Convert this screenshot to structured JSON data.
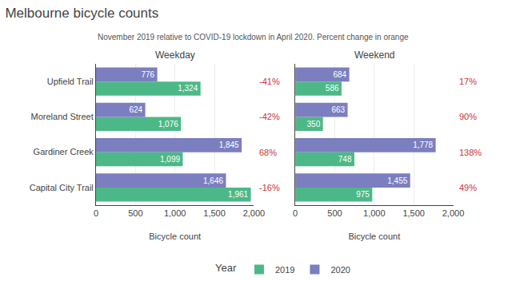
{
  "title": "Melbourne bicycle counts",
  "subtitle": "November 2019 relative to COVID-19 lockdown in April 2020. Percent change in orange",
  "legend": "bottom",
  "legend_title": "Year",
  "chart_data": [
    {
      "type": "bar",
      "title": "Weekday",
      "orientation": "horizontal",
      "categories": [
        "Capital City Trail",
        "Gardiner Creek",
        "Moreland Street",
        "Upfield Trail"
      ],
      "series": [
        {
          "name": "2019",
          "color": "#4db887",
          "values": [
            1961,
            1099,
            1076,
            1324
          ],
          "value_labels": [
            "1,961",
            "1,099",
            "1,076",
            "1,324"
          ]
        },
        {
          "name": "2020",
          "color": "#7b7fbf",
          "values": [
            1646,
            1845,
            624,
            776
          ],
          "value_labels": [
            "1,646",
            "1,845",
            "624",
            "776"
          ]
        }
      ],
      "data_labels": true,
      "annotations": [
        {
          "category": "Capital City Trail",
          "text": "-16%",
          "color": "#cc3333"
        },
        {
          "category": "Gardiner Creek",
          "text": "68%",
          "color": "#cc3333"
        },
        {
          "category": "Moreland Street",
          "text": "-42%",
          "color": "#cc3333"
        },
        {
          "category": "Upfield Trail",
          "text": "-41%",
          "color": "#cc3333"
        }
      ],
      "xlabel": "Bicycle count",
      "xlim": [
        0,
        2000
      ],
      "xticks": [
        0,
        500,
        {
          "value": 1000,
          "label": "1,000"
        },
        {
          "value": 1500,
          "label": "1,500"
        },
        {
          "value": 2000,
          "label": "2,000"
        }
      ],
      "grid": true
    },
    {
      "type": "bar",
      "title": "Weekend",
      "orientation": "horizontal",
      "categories": [
        "Capital City Trail",
        "Gardiner Creek",
        "Moreland Street",
        "Upfield Trail"
      ],
      "series": [
        {
          "name": "2019",
          "color": "#4db887",
          "values": [
            975,
            748,
            350,
            586
          ],
          "value_labels": [
            "975",
            "748",
            "350",
            "586"
          ]
        },
        {
          "name": "2020",
          "color": "#7b7fbf",
          "values": [
            1455,
            1778,
            663,
            684
          ],
          "value_labels": [
            "1,455",
            "1,778",
            "663",
            "684"
          ]
        }
      ],
      "data_labels": true,
      "annotations": [
        {
          "category": "Capital City Trail",
          "text": "49%",
          "color": "#cc3333"
        },
        {
          "category": "Gardiner Creek",
          "text": "138%",
          "color": "#cc3333"
        },
        {
          "category": "Moreland Street",
          "text": "90%",
          "color": "#cc3333"
        },
        {
          "category": "Upfield Trail",
          "text": "17%",
          "color": "#cc3333"
        }
      ],
      "xlabel": "Bicycle count",
      "xlim": [
        0,
        2000
      ],
      "xticks": [
        0,
        500,
        {
          "value": 1000,
          "label": "1,000"
        },
        {
          "value": 1500,
          "label": "1,500"
        },
        {
          "value": 2000,
          "label": "2,000"
        }
      ],
      "grid": true,
      "tick_labels": "x"
    }
  ]
}
